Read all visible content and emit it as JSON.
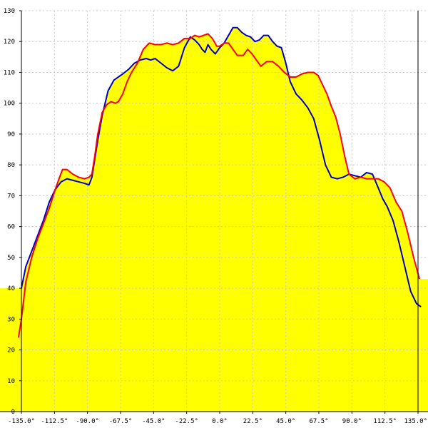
{
  "chart_data": {
    "type": "area",
    "title": "",
    "xlabel": "",
    "ylabel": "",
    "xlim": [
      -135,
      135
    ],
    "ylim": [
      0,
      130
    ],
    "grid": true,
    "legend": "none",
    "xticks": [
      {
        "value": -135,
        "label": "-135.0°"
      },
      {
        "value": -112.5,
        "label": "-112.5°"
      },
      {
        "value": -90,
        "label": "-90.0°"
      },
      {
        "value": -67.5,
        "label": "-67.5°"
      },
      {
        "value": -45,
        "label": "-45.0°"
      },
      {
        "value": -22.5,
        "label": "-22.5°"
      },
      {
        "value": 0,
        "label": "0.0°"
      },
      {
        "value": 22.5,
        "label": "22.5°"
      },
      {
        "value": 45,
        "label": "45.0°"
      },
      {
        "value": 67.5,
        "label": "67.5°"
      },
      {
        "value": 90,
        "label": "90.0°"
      },
      {
        "value": 112.5,
        "label": "112.5°"
      },
      {
        "value": 135,
        "label": "135.0°"
      }
    ],
    "yticks": [
      0,
      10,
      20,
      30,
      40,
      50,
      60,
      70,
      80,
      90,
      100,
      110,
      120,
      130
    ],
    "colors": {
      "fill": "#ffff00",
      "grid": "#c8c8c8",
      "axis": "#000000"
    },
    "series": [
      {
        "color": "#0000cc",
        "x": [
          -135,
          -132,
          -128,
          -124,
          -120,
          -116,
          -112,
          -108,
          -104,
          -100,
          -96,
          -92,
          -89,
          -87,
          -85,
          -83,
          -80,
          -76,
          -72,
          -69,
          -66,
          -62,
          -58,
          -54,
          -50,
          -47,
          -44,
          -40,
          -36,
          -32,
          -28,
          -24,
          -20,
          -17,
          -14,
          -12,
          -10,
          -8,
          -6,
          -3,
          0,
          3,
          6,
          9,
          12,
          15,
          18,
          21,
          24,
          27,
          30,
          33,
          36,
          39,
          42,
          45,
          48,
          52,
          56,
          60,
          64,
          68,
          72,
          76,
          80,
          84,
          88,
          92,
          96,
          100,
          104,
          108,
          111,
          114,
          118,
          122,
          126,
          130,
          134,
          137
        ],
        "y": [
          40,
          47,
          52,
          57,
          62,
          68,
          72,
          74.5,
          75.5,
          75,
          74.5,
          74,
          73.5,
          76,
          82,
          88,
          96,
          104,
          107.5,
          108.5,
          109.5,
          111,
          113,
          114,
          114.5,
          114,
          114.5,
          113,
          111.5,
          110.5,
          112,
          118,
          121.5,
          120.5,
          119,
          117.5,
          116.5,
          119,
          117.5,
          116,
          118,
          119.5,
          122,
          124.5,
          124.5,
          123,
          122,
          121.5,
          120,
          120.5,
          122,
          122,
          120,
          118.5,
          118,
          113,
          107,
          103,
          101,
          98.5,
          95,
          88,
          80,
          76,
          75.5,
          76,
          77,
          76.5,
          76,
          77.5,
          77,
          72.5,
          69,
          66.5,
          62,
          55,
          47,
          39,
          35,
          34
        ]
      },
      {
        "color": "#ff0000",
        "x": [
          -137,
          -135,
          -132,
          -128,
          -124,
          -120,
          -116,
          -112,
          -109,
          -107,
          -104,
          -100,
          -96,
          -92,
          -89,
          -87,
          -85,
          -83,
          -80,
          -77,
          -74,
          -71,
          -69,
          -66,
          -63,
          -60,
          -56,
          -52,
          -48,
          -44,
          -40,
          -36,
          -32,
          -28,
          -24,
          -20,
          -17,
          -14,
          -11,
          -8,
          -5,
          -2,
          0,
          3,
          6,
          9,
          12,
          16,
          19,
          22,
          25,
          28,
          32,
          36,
          40,
          44,
          48,
          52,
          56,
          60,
          64,
          67,
          70,
          73,
          76,
          79,
          82,
          85,
          88,
          92,
          96,
          100,
          104,
          108,
          112,
          116,
          120,
          124,
          128,
          132,
          136
        ],
        "y": [
          24,
          30,
          42,
          50,
          56,
          61,
          66,
          72,
          76,
          78.5,
          78.5,
          77,
          76,
          75.5,
          76,
          77,
          83,
          90,
          97,
          99.5,
          100.5,
          100,
          100.5,
          103,
          107,
          110,
          113,
          117.5,
          119.5,
          119,
          119,
          119.5,
          119,
          119.5,
          121,
          121,
          122,
          121.5,
          122,
          122.5,
          121,
          118.5,
          118.5,
          119.5,
          119.5,
          117.5,
          115.5,
          115.5,
          117.5,
          116,
          114,
          112,
          113.5,
          113.5,
          112,
          110,
          108.5,
          108.5,
          109.5,
          110,
          110,
          109,
          106,
          103,
          99,
          95.5,
          90,
          83,
          77,
          75.5,
          76,
          75.5,
          75.5,
          75.5,
          74.5,
          72.5,
          68,
          65,
          58,
          50,
          43
        ]
      }
    ]
  }
}
